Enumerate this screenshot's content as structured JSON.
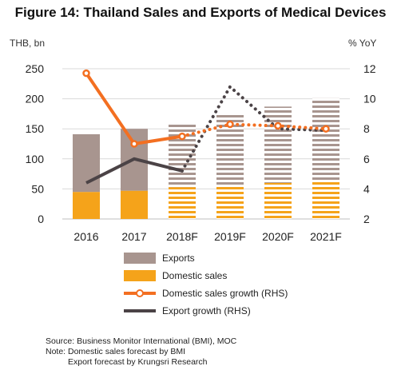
{
  "title": "Figure 14: Thailand Sales and Exports of Medical Devices",
  "left_unit": "THB, bn",
  "right_unit": "% YoY",
  "legend": {
    "exports": "Exports",
    "domestic": "Domestic sales",
    "domestic_growth": "Domestic sales growth (RHS)",
    "export_growth": "Export growth (RHS)"
  },
  "notes": {
    "source": "Source: Business Monitor International (BMI), MOC",
    "note1": "Note: Domestic sales forecast by BMI",
    "note2": "Export forecast by Krungsri Research"
  },
  "colors": {
    "exports": "#a8958f",
    "domestic": "#f5a31a",
    "domestic_growth": "#f36f21",
    "export_growth": "#4b4346"
  },
  "chart_data": {
    "type": "bar",
    "categories": [
      "2016",
      "2017",
      "2018F",
      "2019F",
      "2020F",
      "2021F"
    ],
    "forecast_from_index": 2,
    "ylim_left": [
      0,
      250
    ],
    "yticks_left": [
      0,
      50,
      100,
      150,
      200,
      250
    ],
    "ylim_right": [
      2,
      12
    ],
    "yticks_right": [
      2,
      4,
      6,
      8,
      10,
      12
    ],
    "series": [
      {
        "name": "Domestic sales",
        "type": "bar",
        "stack": "total",
        "axis": "left",
        "values": [
          45,
          47,
          53,
          55,
          60,
          62
        ]
      },
      {
        "name": "Exports",
        "type": "bar",
        "stack": "total",
        "axis": "left",
        "values": [
          96,
          103,
          105,
          118,
          127,
          139
        ]
      },
      {
        "name": "Domestic sales growth (RHS)",
        "type": "line",
        "axis": "right",
        "values": [
          11.7,
          7.0,
          7.5,
          8.3,
          8.2,
          8.0
        ]
      },
      {
        "name": "Export growth (RHS)",
        "type": "line",
        "axis": "right",
        "values": [
          4.4,
          6.0,
          5.2,
          10.8,
          8.0,
          7.9
        ]
      }
    ]
  }
}
